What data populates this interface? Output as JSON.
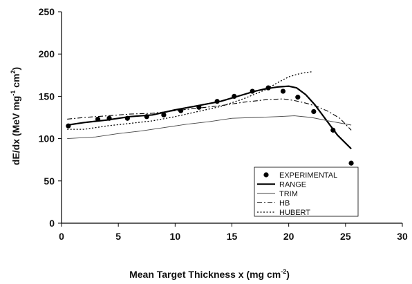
{
  "chart_data": {
    "type": "line",
    "xlabel_main": "Mean Target Thickness x (mg cm",
    "xlabel_sup": "-2",
    "xlabel_end": ")",
    "ylabel_main": "dE/dx (MeV mg",
    "ylabel_sup1": "-1",
    "ylabel_mid": " cm",
    "ylabel_sup2": "2",
    "ylabel_end": ")",
    "xlim": [
      0,
      30
    ],
    "ylim": [
      0,
      250
    ],
    "xticks": [
      0,
      5,
      10,
      15,
      20,
      25,
      30
    ],
    "yticks": [
      0,
      50,
      100,
      150,
      200,
      250
    ],
    "grid": false,
    "legend_position": "bottom-right",
    "series": [
      {
        "name": "EXPERIMENTAL",
        "style": "markers",
        "x": [
          0.6,
          3.2,
          4.2,
          5.8,
          7.5,
          9.0,
          10.5,
          12.1,
          13.7,
          15.2,
          16.8,
          18.2,
          19.5,
          20.8,
          22.2,
          23.9,
          25.5
        ],
        "y": [
          115,
          123,
          124,
          124,
          126,
          128,
          133,
          137,
          144,
          150,
          156,
          160,
          156,
          149,
          132,
          110,
          71
        ]
      },
      {
        "name": "RANGE",
        "style": "solid-thick",
        "x": [
          0.5,
          2,
          4,
          6,
          8,
          10,
          12,
          14,
          15,
          16,
          17,
          18,
          19,
          20,
          20.7,
          21.5,
          22.3,
          23.3,
          24.3,
          25.5
        ],
        "y": [
          116,
          119,
          122,
          126,
          128,
          134,
          139,
          144,
          148,
          152,
          156,
          159,
          161,
          162,
          160,
          152,
          140,
          122,
          104,
          88
        ]
      },
      {
        "name": "TRIM",
        "style": "solid-thin",
        "x": [
          0.5,
          3,
          5,
          7,
          9,
          11,
          13,
          15,
          17,
          19,
          20.5,
          22,
          23.5,
          25.5
        ],
        "y": [
          100,
          102,
          106,
          109,
          113,
          117,
          120,
          124,
          125,
          126,
          127,
          125,
          121,
          116
        ]
      },
      {
        "name": "HB",
        "style": "dash-dot",
        "x": [
          0.5,
          2,
          4,
          6,
          8,
          10,
          12,
          14,
          16,
          18,
          19.5,
          20.5,
          21.5,
          22.5,
          23.5,
          24.5,
          25.5
        ],
        "y": [
          123,
          125,
          127,
          129,
          130,
          133,
          136,
          139,
          143,
          146,
          147,
          145,
          142,
          138,
          132,
          124,
          110
        ]
      },
      {
        "name": "HUBERT",
        "style": "dotted",
        "x": [
          0.5,
          2,
          4,
          6,
          8,
          10,
          12,
          14,
          16,
          18,
          19,
          20,
          21,
          22
        ],
        "y": [
          111,
          111,
          115,
          118,
          121,
          126,
          132,
          138,
          147,
          158,
          166,
          173,
          177,
          179
        ]
      }
    ]
  }
}
